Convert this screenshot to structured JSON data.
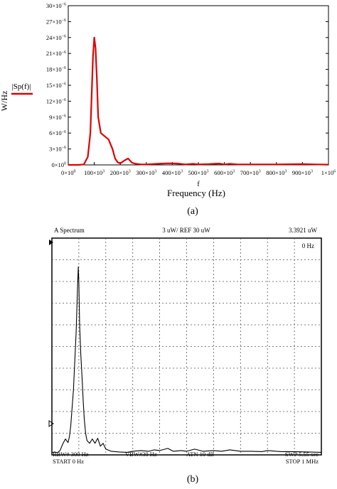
{
  "chart_data": [
    {
      "type": "line",
      "panel_label": "(a)",
      "xlabel": "Frequency (Hz)",
      "x_var": "f",
      "ylabel": "W/Hz",
      "legend": "|Sp(f)|",
      "legend_placement": "left-middle",
      "grid": false,
      "xlim": [
        0,
        1000000
      ],
      "ylim": [
        0,
        3e-05
      ],
      "x_ticks": [
        {
          "value": 0,
          "base": "0×10",
          "exp": "0"
        },
        {
          "value": 100000,
          "base": "100×10",
          "exp": "3"
        },
        {
          "value": 200000,
          "base": "200×10",
          "exp": "3"
        },
        {
          "value": 300000,
          "base": "300×10",
          "exp": "3"
        },
        {
          "value": 400000,
          "base": "400×10",
          "exp": "3"
        },
        {
          "value": 500000,
          "base": "500×10",
          "exp": "3"
        },
        {
          "value": 600000,
          "base": "600×10",
          "exp": "3"
        },
        {
          "value": 700000,
          "base": "700×10",
          "exp": "3"
        },
        {
          "value": 800000,
          "base": "800×10",
          "exp": "3"
        },
        {
          "value": 900000,
          "base": "900×10",
          "exp": "3"
        },
        {
          "value": 1000000,
          "base": "1×10",
          "exp": "6"
        }
      ],
      "y_ticks": [
        {
          "value": 0,
          "base": "0×10",
          "exp": "0"
        },
        {
          "value": 3e-06,
          "base": "3×10",
          "exp": "−6"
        },
        {
          "value": 6e-06,
          "base": "6×10",
          "exp": "−6"
        },
        {
          "value": 9e-06,
          "base": "9×10",
          "exp": "−6"
        },
        {
          "value": 1.2e-05,
          "base": "12×10",
          "exp": "−6"
        },
        {
          "value": 1.5e-05,
          "base": "15×10",
          "exp": "−6"
        },
        {
          "value": 1.8e-05,
          "base": "18×10",
          "exp": "−6"
        },
        {
          "value": 2.1e-05,
          "base": "21×10",
          "exp": "−6"
        },
        {
          "value": 2.4e-05,
          "base": "24×10",
          "exp": "−6"
        },
        {
          "value": 2.7e-05,
          "base": "27×10",
          "exp": "−6"
        },
        {
          "value": 3e-05,
          "base": "30×10",
          "exp": "−6"
        }
      ],
      "series": [
        {
          "name": "|Sp(f)|",
          "color": "#e00000",
          "x": [
            0,
            40000,
            60000,
            75000,
            85000,
            90000,
            95000,
            100000,
            105000,
            110000,
            115000,
            125000,
            140000,
            155000,
            170000,
            180000,
            190000,
            200000,
            215000,
            230000,
            245000,
            260000,
            280000,
            300000,
            340000,
            380000,
            400000,
            420000,
            450000,
            480000,
            500000,
            540000,
            580000,
            600000,
            620000,
            650000,
            700000,
            750000,
            800000,
            850000,
            900000,
            950000,
            1000000
          ],
          "y": [
            0,
            0,
            1e-07,
            1.5e-06,
            6e-06,
            1.3e-05,
            2.05e-05,
            2.4e-05,
            2.2e-05,
            1.6e-05,
            9e-06,
            6e-06,
            5.4e-06,
            4.8e-06,
            3e-06,
            1.2e-06,
            5e-07,
            3e-07,
            8e-07,
            1.2e-06,
            4e-07,
            2e-07,
            1e-07,
            1e-07,
            2e-07,
            3e-07,
            3e-07,
            2.5e-07,
            1e-07,
            2e-07,
            1e-07,
            1.5e-07,
            2.5e-07,
            1e-07,
            2e-07,
            1e-07,
            1e-07,
            1e-07,
            1e-07,
            1.2e-07,
            1.5e-07,
            1e-07,
            5e-08
          ]
        }
      ]
    },
    {
      "type": "line",
      "panel_label": "(b)",
      "grid": true,
      "screen_bg": "#ffffff",
      "header": {
        "left": "A  Spectrum",
        "center": "3 uW/ REF 30 uW",
        "right": "3.3921 uW",
        "marker": "0 Hz"
      },
      "footer": {
        "rbw": "RBW# 300 Hz",
        "vbw": "VBW#30 Hz",
        "atn": "ATN  10 dB",
        "swp": "SWP  5.55 sec",
        "start": "START  0 Hz",
        "stop": "STOP  1 MHz"
      },
      "xlim": [
        0,
        1000000
      ],
      "ylim": [
        0,
        30
      ],
      "series": [
        {
          "name": "",
          "color": "#000000",
          "x": [
            0,
            10000,
            20000,
            30000,
            40000,
            50000,
            60000,
            65000,
            70000,
            75000,
            80000,
            85000,
            90000,
            95000,
            98000,
            100000,
            103000,
            107000,
            110000,
            113000,
            116000,
            120000,
            125000,
            130000,
            140000,
            150000,
            160000,
            170000,
            180000,
            190000,
            200000,
            220000,
            250000,
            280000,
            300000,
            330000,
            360000,
            380000,
            400000,
            430000,
            450000,
            480000,
            500000,
            530000,
            560000,
            600000,
            630000,
            660000,
            700000,
            740000,
            780000,
            800000,
            850000,
            900000,
            950000,
            1000000
          ],
          "y": [
            0.3,
            0.4,
            0.3,
            0.6,
            1.5,
            2.2,
            1.7,
            2.5,
            4.0,
            6.5,
            9.0,
            13.0,
            17.0,
            23.0,
            26.0,
            24.0,
            18.0,
            14.0,
            12.0,
            10.0,
            7.5,
            5.0,
            3.0,
            2.0,
            1.6,
            2.2,
            1.6,
            2.3,
            1.2,
            1.6,
            0.8,
            0.5,
            0.4,
            0.35,
            0.5,
            0.6,
            0.5,
            0.7,
            0.6,
            0.9,
            0.5,
            0.6,
            0.5,
            0.8,
            0.5,
            0.6,
            0.5,
            0.7,
            0.5,
            0.5,
            0.45,
            0.6,
            0.45,
            0.45,
            0.4,
            0.35
          ]
        }
      ]
    }
  ]
}
